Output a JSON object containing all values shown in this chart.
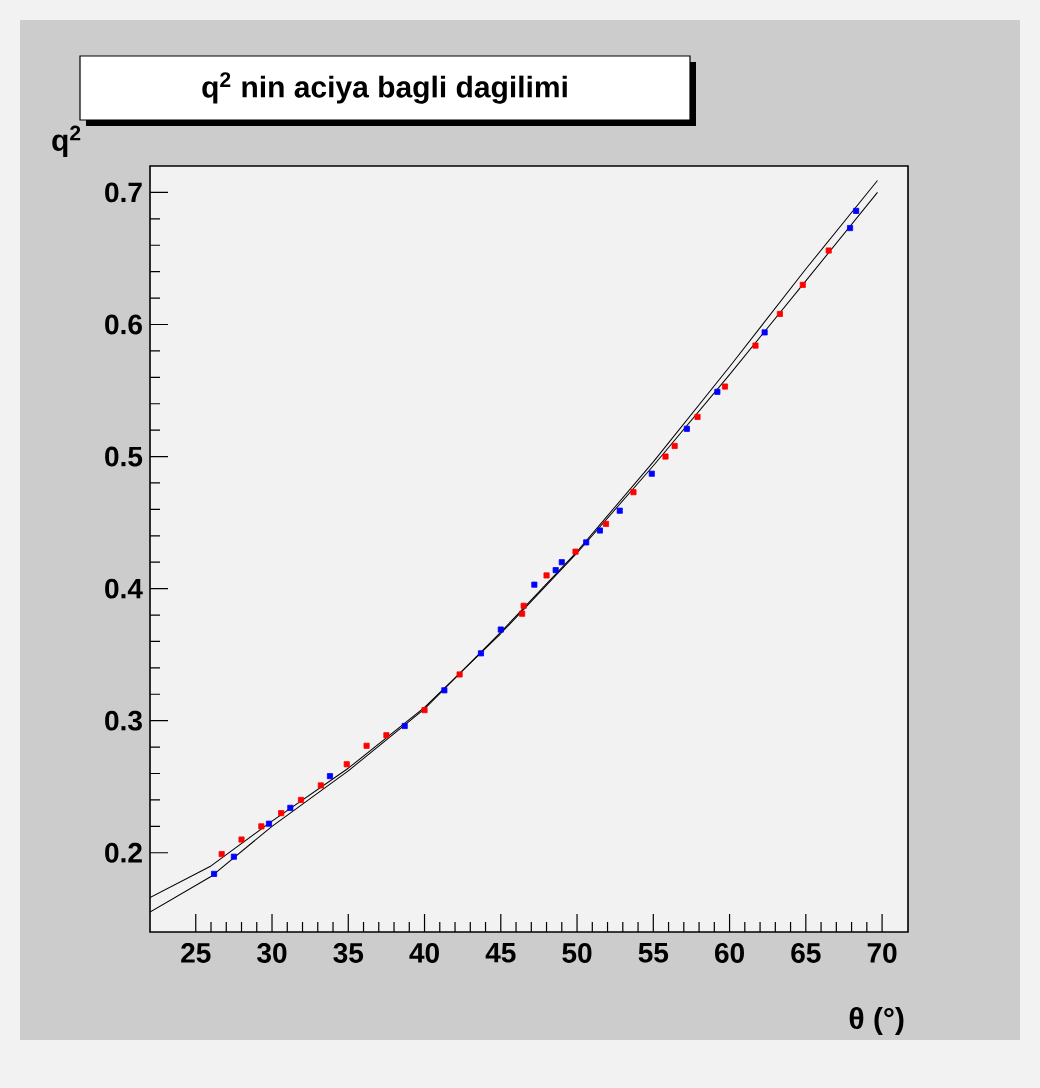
{
  "chart_data": {
    "type": "scatter",
    "title": "q$^{2}$ nin aciya bagli dagilimi",
    "xlabel": "θ (°)",
    "ylabel": "q$^{2}$",
    "xlim": [
      22,
      71.7
    ],
    "ylim": [
      0.14,
      0.72
    ],
    "xticks": [
      25,
      30,
      35,
      40,
      45,
      50,
      55,
      60,
      65,
      70
    ],
    "yticks": [
      0.2,
      0.3,
      0.4,
      0.5,
      0.6,
      0.7
    ],
    "series": [
      {
        "type": "line",
        "color": "#000000",
        "line_style": "solid",
        "x": [
          22,
          26,
          30,
          35,
          40,
          45,
          50,
          55,
          60,
          65,
          69.7
        ],
        "values": [
          0.166,
          0.19,
          0.224,
          0.264,
          0.31,
          0.366,
          0.427,
          0.493,
          0.562,
          0.633,
          0.7
        ]
      },
      {
        "type": "line",
        "color": "#000000",
        "line_style": "solid",
        "x": [
          22,
          26,
          30,
          35,
          40,
          45,
          50,
          55,
          60,
          65,
          69.7
        ],
        "values": [
          0.155,
          0.182,
          0.22,
          0.262,
          0.309,
          0.367,
          0.428,
          0.496,
          0.568,
          0.642,
          0.709
        ]
      },
      {
        "color": "#ff0000",
        "marker": "square",
        "x": [
          26.7,
          28.0,
          29.3,
          30.6,
          31.9,
          33.2,
          34.9,
          36.2,
          37.5,
          40.0,
          42.3,
          46.5,
          46.4,
          48.0,
          49.9,
          51.9,
          53.7,
          55.8,
          56.4,
          57.9,
          59.7,
          61.7,
          63.3,
          64.8,
          66.5
        ],
        "values": [
          0.199,
          0.21,
          0.22,
          0.23,
          0.24,
          0.251,
          0.267,
          0.281,
          0.289,
          0.308,
          0.335,
          0.387,
          0.381,
          0.41,
          0.428,
          0.449,
          0.473,
          0.5,
          0.508,
          0.53,
          0.553,
          0.584,
          0.608,
          0.63,
          0.656
        ]
      },
      {
        "color": "#0000ff",
        "marker": "square",
        "x": [
          26.2,
          27.5,
          29.8,
          31.2,
          33.8,
          38.7,
          41.3,
          43.7,
          45.0,
          47.2,
          48.6,
          49.0,
          50.6,
          51.5,
          52.8,
          54.9,
          57.2,
          59.2,
          62.3,
          67.9,
          68.3
        ],
        "values": [
          0.184,
          0.197,
          0.222,
          0.234,
          0.258,
          0.296,
          0.323,
          0.351,
          0.369,
          0.403,
          0.414,
          0.42,
          0.435,
          0.444,
          0.459,
          0.487,
          0.521,
          0.549,
          0.594,
          0.673,
          0.686
        ]
      }
    ]
  }
}
